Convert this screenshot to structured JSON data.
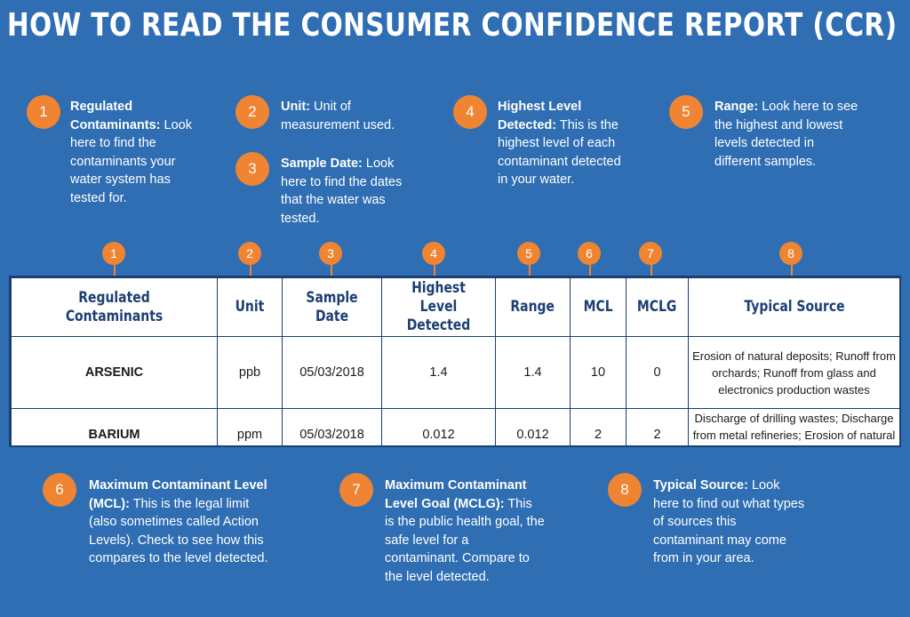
{
  "title": "HOW TO READ THE CONSUMER CONFIDENCE REPORT (CCR)",
  "notes_top": [
    {
      "num": "1",
      "head": "Regulated Contaminants:",
      "body": "Look here to find the contaminants your water system has tested for."
    },
    {
      "num": "2",
      "head": "Unit:",
      "body": "Unit of measurement used."
    },
    {
      "num": "3",
      "head": "Sample Date:",
      "body": "Look here to find the dates that the water was tested."
    },
    {
      "num": "4",
      "head": "Highest Level Detected:",
      "body": "This is the highest level of each contaminant detected in your water."
    },
    {
      "num": "5",
      "head": "Range:",
      "body": "Look here to see the highest and lowest levels detected in different samples."
    }
  ],
  "notes_bottom": [
    {
      "num": "6",
      "head": "Maximum Contaminant Level (MCL):",
      "body": "This is the legal limit (also sometimes called Action Levels).  Check to see how this compares to the level detected."
    },
    {
      "num": "7",
      "head": "Maximum Contaminant Level Goal (MCLG):",
      "body": "This is the public health goal, the safe level for a contaminant.  Compare to the level detected."
    },
    {
      "num": "8",
      "head": "Typical Source:",
      "body": "Look here to find out what types of sources this contaminant may come from in your area."
    }
  ],
  "column_numbers": [
    "1",
    "2",
    "3",
    "4",
    "5",
    "6",
    "7",
    "8"
  ],
  "table": {
    "headers": [
      "Regulated Contaminants",
      "Unit",
      "Sample Date",
      "Highest Level Detected",
      "Range",
      "MCL",
      "MCLG",
      "Typical Source"
    ],
    "rows": [
      [
        "ARSENIC",
        "ppb",
        "05/03/2018",
        "1.4",
        "1.4",
        "10",
        "0",
        "Erosion of natural deposits; Runoff from orchards; Runoff from glass and electronics production wastes"
      ],
      [
        "BARIUM",
        "ppm",
        "05/03/2018",
        "0.012",
        "0.012",
        "2",
        "2",
        "Discharge of drilling wastes; Discharge from metal refineries; Erosion of natural deposits."
      ]
    ]
  },
  "colors": {
    "background": "#2f6eb3",
    "badge": "#ef8433",
    "header_text": "#1b3f73"
  }
}
